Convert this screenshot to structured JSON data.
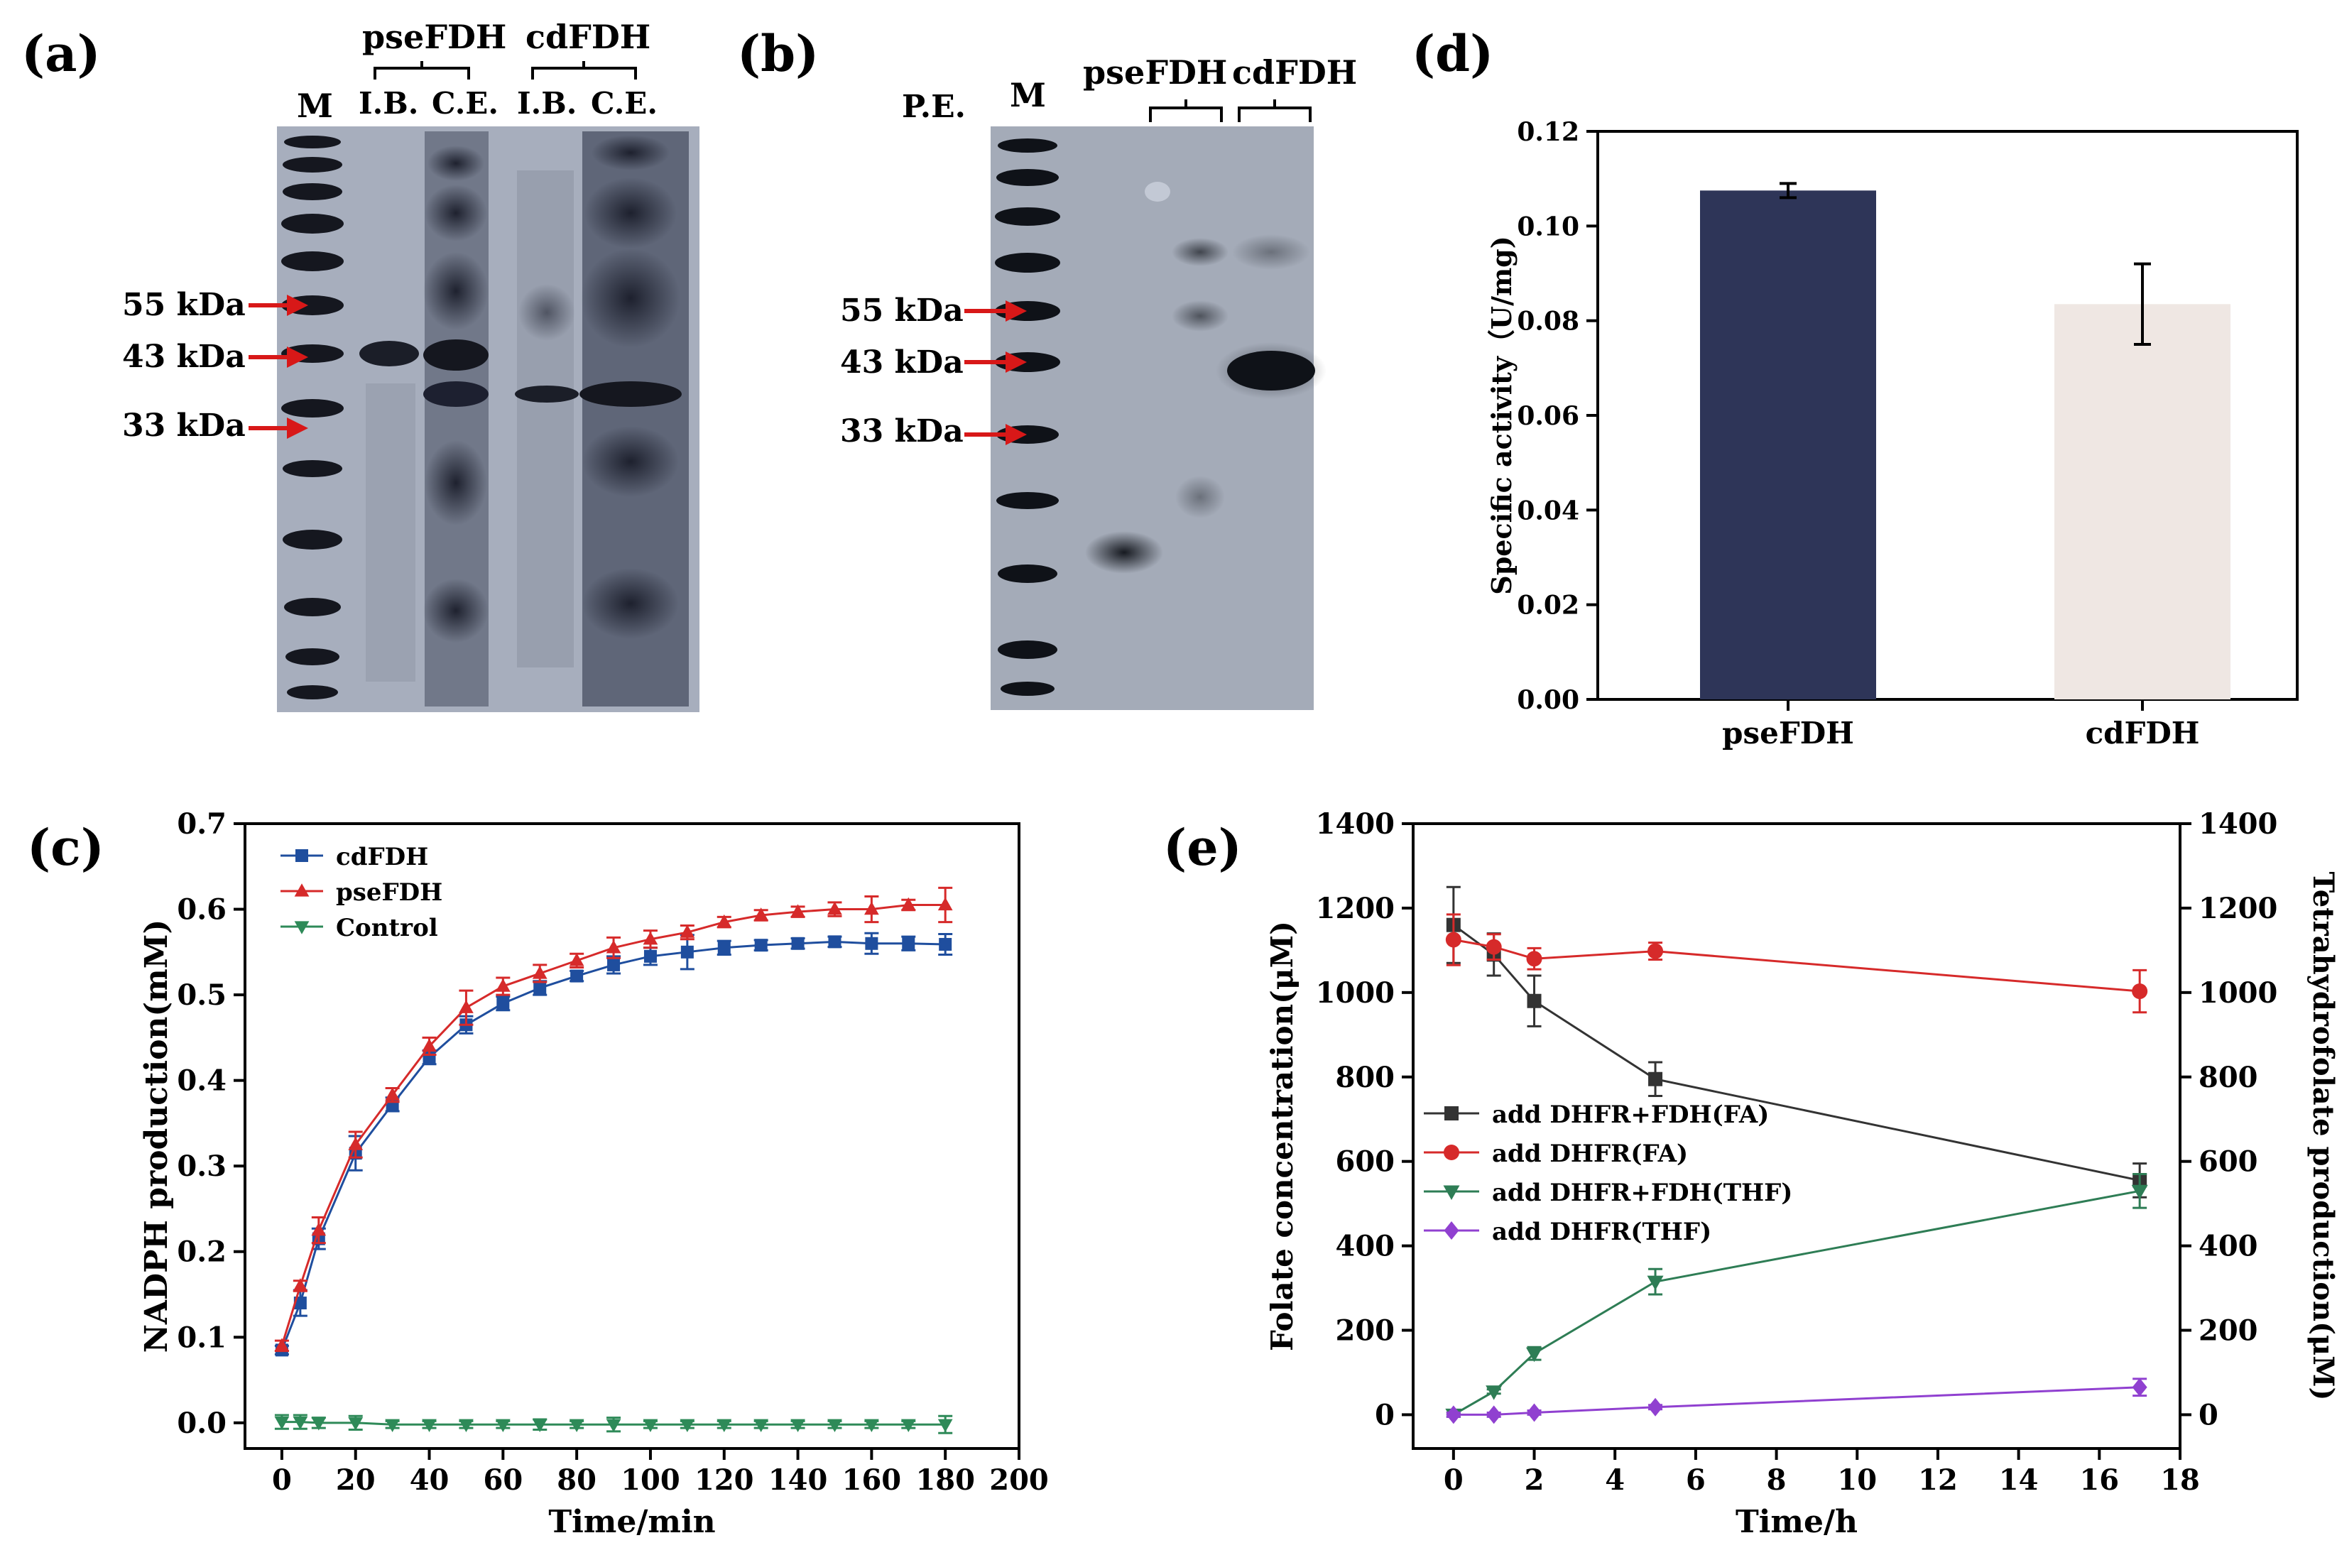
{
  "panels": {
    "a": {
      "label": "(a)",
      "lane_marker": "M",
      "group_labels": [
        "pseFDH",
        "cdFDH"
      ],
      "lane_labels": [
        "I.B.",
        "C.E.",
        "I.B.",
        "C.E."
      ],
      "marker_labels": [
        "55 kDa",
        "43 kDa",
        "33 kDa"
      ]
    },
    "b": {
      "label": "(b)",
      "pe_label": "P.E.",
      "lane_marker": "M",
      "group_labels": [
        "pseFDH",
        "cdFDH"
      ],
      "marker_labels": [
        "55 kDa",
        "43 kDa",
        "33 kDa"
      ]
    },
    "c": {
      "label": "(c)"
    },
    "d": {
      "label": "(d)"
    },
    "e": {
      "label": "(e)"
    }
  },
  "chart_data": [
    {
      "id": "d",
      "type": "bar",
      "ylabel": "Specific activity（U/mg)",
      "categories": [
        "pseFDH",
        "cdFDH"
      ],
      "values": [
        0.1075,
        0.0835
      ],
      "errors": [
        0.0015,
        0.0085
      ],
      "colors": [
        "#2e3558",
        "#efe7e3"
      ],
      "ylim": [
        0,
        0.12
      ],
      "yticks": [
        "0.00",
        "0.02",
        "0.04",
        "0.06",
        "0.08",
        "0.10",
        "0.12"
      ]
    },
    {
      "id": "c",
      "type": "line",
      "xlabel": "Time/min",
      "ylabel": "NADPH production(mM)",
      "xlim": [
        -10,
        200
      ],
      "ylim": [
        -0.03,
        0.7
      ],
      "xticks": [
        "0",
        "20",
        "40",
        "60",
        "80",
        "100",
        "120",
        "140",
        "160",
        "180",
        "200"
      ],
      "yticks": [
        "0.0",
        "0.1",
        "0.2",
        "0.3",
        "0.4",
        "0.5",
        "0.6",
        "0.7"
      ],
      "legend": "top-left",
      "series": [
        {
          "name": "cdFDH",
          "color": "#1f4e9e",
          "marker": "square",
          "x": [
            0,
            5,
            10,
            20,
            30,
            40,
            50,
            60,
            70,
            80,
            90,
            100,
            110,
            120,
            130,
            140,
            150,
            160,
            170,
            180
          ],
          "y": [
            0.085,
            0.14,
            0.215,
            0.315,
            0.372,
            0.427,
            0.465,
            0.49,
            0.508,
            0.522,
            0.535,
            0.545,
            0.55,
            0.555,
            0.558,
            0.56,
            0.562,
            0.56,
            0.56,
            0.559
          ],
          "err": [
            0.005,
            0.015,
            0.012,
            0.02,
            0.008,
            0.008,
            0.01,
            0.008,
            0.008,
            0.006,
            0.01,
            0.01,
            0.02,
            0.008,
            0.006,
            0.006,
            0.006,
            0.012,
            0.008,
            0.012
          ]
        },
        {
          "name": "pseFDH",
          "color": "#d62a2a",
          "marker": "triangle-up",
          "x": [
            0,
            5,
            10,
            20,
            30,
            40,
            50,
            60,
            70,
            80,
            90,
            100,
            110,
            120,
            130,
            140,
            150,
            160,
            170,
            180
          ],
          "y": [
            0.09,
            0.16,
            0.225,
            0.325,
            0.383,
            0.44,
            0.485,
            0.51,
            0.525,
            0.54,
            0.555,
            0.565,
            0.573,
            0.585,
            0.593,
            0.597,
            0.6,
            0.6,
            0.605,
            0.605
          ],
          "err": [
            0.006,
            0.006,
            0.015,
            0.015,
            0.008,
            0.01,
            0.02,
            0.01,
            0.01,
            0.008,
            0.012,
            0.01,
            0.008,
            0.006,
            0.006,
            0.006,
            0.008,
            0.015,
            0.006,
            0.02
          ]
        },
        {
          "name": "Control",
          "color": "#2e8a58",
          "marker": "triangle-down",
          "x": [
            0,
            5,
            10,
            20,
            30,
            40,
            50,
            60,
            70,
            80,
            90,
            100,
            110,
            120,
            130,
            140,
            150,
            160,
            170,
            180
          ],
          "y": [
            0.001,
            0.001,
            0.0,
            0.0,
            -0.002,
            -0.002,
            -0.002,
            -0.002,
            -0.002,
            -0.002,
            -0.002,
            -0.002,
            -0.002,
            -0.002,
            -0.002,
            -0.002,
            -0.002,
            -0.002,
            -0.002,
            -0.002
          ],
          "err": [
            0.008,
            0.008,
            0.006,
            0.008,
            0.004,
            0.004,
            0.004,
            0.004,
            0.006,
            0.004,
            0.008,
            0.004,
            0.004,
            0.004,
            0.004,
            0.004,
            0.004,
            0.004,
            0.004,
            0.01
          ]
        }
      ]
    },
    {
      "id": "e",
      "type": "line",
      "xlabel": "Time/h",
      "ylabel": "Folate concentration(μM)",
      "y2label": "Tetrahydrofolate production(μM)",
      "xlim": [
        -1,
        18
      ],
      "ylim": [
        -80,
        1400
      ],
      "xticks": [
        "0",
        "2",
        "4",
        "6",
        "8",
        "10",
        "12",
        "14",
        "16",
        "18"
      ],
      "yticks": [
        "0",
        "200",
        "400",
        "600",
        "800",
        "1000",
        "1200",
        "1400"
      ],
      "legend": "center-left",
      "series": [
        {
          "name": "add DHFR+FDH(FA)",
          "color": "#333333",
          "marker": "square",
          "x": [
            0,
            1,
            2,
            5,
            17
          ],
          "y": [
            1160,
            1090,
            980,
            795,
            555
          ],
          "err": [
            90,
            50,
            60,
            40,
            40
          ]
        },
        {
          "name": "add DHFR(FA)",
          "color": "#d62a2a",
          "marker": "circle",
          "x": [
            0,
            1,
            2,
            5,
            17
          ],
          "y": [
            1125,
            1108,
            1080,
            1098,
            1003
          ],
          "err": [
            60,
            30,
            25,
            20,
            50
          ]
        },
        {
          "name": "add DHFR+FDH(THF)",
          "color": "#2e7d55",
          "marker": "triangle-down",
          "x": [
            0,
            1,
            2,
            5,
            17
          ],
          "y": [
            0,
            55,
            145,
            315,
            530
          ],
          "err": [
            5,
            5,
            15,
            30,
            40
          ]
        },
        {
          "name": "add DHFR(THF)",
          "color": "#9040d0",
          "marker": "diamond",
          "x": [
            0,
            1,
            2,
            5,
            17
          ],
          "y": [
            0,
            0,
            5,
            18,
            65
          ],
          "err": [
            5,
            5,
            5,
            5,
            20
          ]
        }
      ]
    }
  ]
}
